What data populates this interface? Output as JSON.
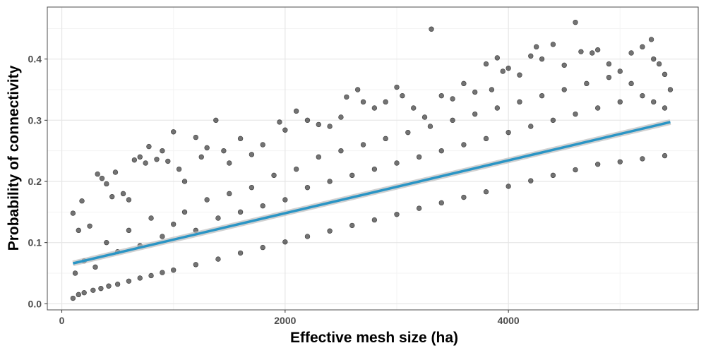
{
  "chart_data": {
    "type": "scatter",
    "title": "",
    "xlabel": "Effective mesh size (ha)",
    "ylabel": "Probability of connectivity",
    "xlim": [
      -130,
      5700
    ],
    "ylim": [
      -0.01,
      0.485
    ],
    "x_ticks": [
      0,
      2000,
      4000
    ],
    "y_ticks": [
      0.0,
      0.1,
      0.2,
      0.3,
      0.4
    ],
    "x_tick_labels": [
      "0",
      "2000",
      "4000"
    ],
    "y_tick_labels": [
      "0.0",
      "0.1",
      "0.2",
      "0.3",
      "0.4"
    ],
    "grid": true,
    "legend": "none",
    "colors": {
      "points": "#000000",
      "trend": "#2a95c5",
      "band": "#bdbdbd",
      "grid_major": "#e6e6e6",
      "grid_minor": "#f3f3f3",
      "panel_border": "#4d4d4d"
    },
    "series": [
      {
        "type": "scatter",
        "points": [
          [
            100,
            0.009
          ],
          [
            150,
            0.015
          ],
          [
            200,
            0.018
          ],
          [
            280,
            0.022
          ],
          [
            350,
            0.025
          ],
          [
            420,
            0.029
          ],
          [
            500,
            0.032
          ],
          [
            600,
            0.037
          ],
          [
            700,
            0.042
          ],
          [
            800,
            0.046
          ],
          [
            900,
            0.051
          ],
          [
            1000,
            0.055
          ],
          [
            1200,
            0.064
          ],
          [
            1400,
            0.073
          ],
          [
            1600,
            0.083
          ],
          [
            1800,
            0.092
          ],
          [
            2000,
            0.101
          ],
          [
            2200,
            0.11
          ],
          [
            2400,
            0.119
          ],
          [
            2600,
            0.128
          ],
          [
            2800,
            0.137
          ],
          [
            3000,
            0.146
          ],
          [
            3200,
            0.156
          ],
          [
            3400,
            0.165
          ],
          [
            3600,
            0.174
          ],
          [
            3800,
            0.183
          ],
          [
            4000,
            0.192
          ],
          [
            4200,
            0.201
          ],
          [
            4400,
            0.21
          ],
          [
            4600,
            0.219
          ],
          [
            4800,
            0.228
          ],
          [
            5000,
            0.232
          ],
          [
            5200,
            0.237
          ],
          [
            5400,
            0.242
          ],
          [
            100,
            0.148
          ],
          [
            150,
            0.12
          ],
          [
            180,
            0.168
          ],
          [
            250,
            0.127
          ],
          [
            320,
            0.212
          ],
          [
            360,
            0.205
          ],
          [
            400,
            0.196
          ],
          [
            450,
            0.175
          ],
          [
            480,
            0.215
          ],
          [
            550,
            0.18
          ],
          [
            600,
            0.17
          ],
          [
            650,
            0.235
          ],
          [
            700,
            0.24
          ],
          [
            750,
            0.23
          ],
          [
            780,
            0.257
          ],
          [
            850,
            0.236
          ],
          [
            900,
            0.25
          ],
          [
            950,
            0.233
          ],
          [
            1000,
            0.281
          ],
          [
            1050,
            0.22
          ],
          [
            1100,
            0.2
          ],
          [
            1200,
            0.272
          ],
          [
            1250,
            0.24
          ],
          [
            1300,
            0.255
          ],
          [
            1380,
            0.3
          ],
          [
            1450,
            0.25
          ],
          [
            1500,
            0.23
          ],
          [
            1600,
            0.27
          ],
          [
            1700,
            0.244
          ],
          [
            1800,
            0.26
          ],
          [
            1950,
            0.297
          ],
          [
            2000,
            0.284
          ],
          [
            2100,
            0.315
          ],
          [
            2200,
            0.3
          ],
          [
            2300,
            0.293
          ],
          [
            2400,
            0.29
          ],
          [
            2500,
            0.305
          ],
          [
            2550,
            0.338
          ],
          [
            2650,
            0.35
          ],
          [
            2700,
            0.33
          ],
          [
            2800,
            0.32
          ],
          [
            2900,
            0.33
          ],
          [
            3000,
            0.354
          ],
          [
            3050,
            0.34
          ],
          [
            3150,
            0.32
          ],
          [
            3310,
            0.449
          ],
          [
            3250,
            0.305
          ],
          [
            3400,
            0.34
          ],
          [
            3500,
            0.335
          ],
          [
            3600,
            0.36
          ],
          [
            3700,
            0.346
          ],
          [
            3800,
            0.392
          ],
          [
            3850,
            0.35
          ],
          [
            3900,
            0.402
          ],
          [
            3950,
            0.38
          ],
          [
            4000,
            0.385
          ],
          [
            4100,
            0.374
          ],
          [
            4200,
            0.405
          ],
          [
            4250,
            0.42
          ],
          [
            4300,
            0.4
          ],
          [
            4400,
            0.424
          ],
          [
            4500,
            0.39
          ],
          [
            4600,
            0.46
          ],
          [
            4650,
            0.412
          ],
          [
            4750,
            0.41
          ],
          [
            4800,
            0.415
          ],
          [
            4900,
            0.392
          ],
          [
            5000,
            0.38
          ],
          [
            5100,
            0.41
          ],
          [
            5200,
            0.42
          ],
          [
            5280,
            0.432
          ],
          [
            5300,
            0.4
          ],
          [
            5350,
            0.392
          ],
          [
            5400,
            0.375
          ],
          [
            5450,
            0.35
          ],
          [
            120,
            0.05
          ],
          [
            200,
            0.07
          ],
          [
            300,
            0.06
          ],
          [
            400,
            0.1
          ],
          [
            500,
            0.085
          ],
          [
            600,
            0.12
          ],
          [
            700,
            0.095
          ],
          [
            800,
            0.14
          ],
          [
            900,
            0.11
          ],
          [
            1000,
            0.13
          ],
          [
            1100,
            0.15
          ],
          [
            1200,
            0.12
          ],
          [
            1300,
            0.17
          ],
          [
            1400,
            0.14
          ],
          [
            1500,
            0.18
          ],
          [
            1600,
            0.15
          ],
          [
            1700,
            0.19
          ],
          [
            1800,
            0.16
          ],
          [
            1900,
            0.21
          ],
          [
            2000,
            0.17
          ],
          [
            2100,
            0.22
          ],
          [
            2200,
            0.19
          ],
          [
            2300,
            0.24
          ],
          [
            2400,
            0.2
          ],
          [
            2500,
            0.25
          ],
          [
            2600,
            0.21
          ],
          [
            2700,
            0.26
          ],
          [
            2800,
            0.22
          ],
          [
            2900,
            0.27
          ],
          [
            3000,
            0.23
          ],
          [
            3100,
            0.28
          ],
          [
            3200,
            0.24
          ],
          [
            3300,
            0.29
          ],
          [
            3400,
            0.25
          ],
          [
            3500,
            0.3
          ],
          [
            3600,
            0.26
          ],
          [
            3700,
            0.31
          ],
          [
            3800,
            0.27
          ],
          [
            3900,
            0.32
          ],
          [
            4000,
            0.28
          ],
          [
            4100,
            0.33
          ],
          [
            4200,
            0.29
          ],
          [
            4300,
            0.34
          ],
          [
            4400,
            0.3
          ],
          [
            4500,
            0.35
          ],
          [
            4600,
            0.31
          ],
          [
            4700,
            0.36
          ],
          [
            4800,
            0.32
          ],
          [
            4900,
            0.37
          ],
          [
            5000,
            0.33
          ],
          [
            5100,
            0.36
          ],
          [
            5200,
            0.34
          ],
          [
            5300,
            0.33
          ],
          [
            5400,
            0.32
          ]
        ],
        "name": ""
      },
      {
        "type": "line",
        "name": "",
        "points": [
          [
            100,
            0.066
          ],
          [
            5450,
            0.297
          ]
        ]
      }
    ]
  }
}
